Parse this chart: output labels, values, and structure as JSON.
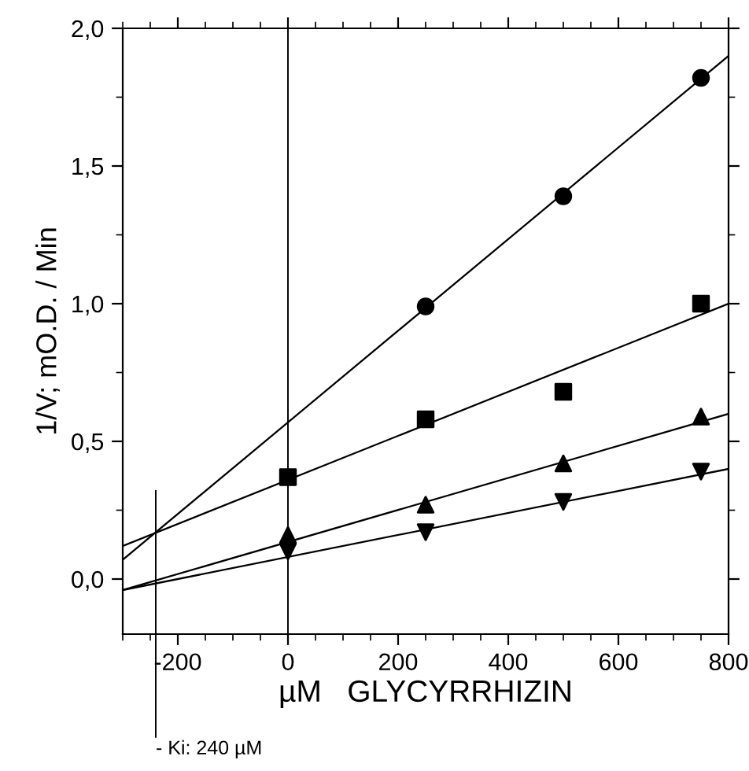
{
  "chart_data": {
    "type": "scatter",
    "xlabel": "µM   GLYCYRRHIZIN",
    "ylabel": "1/V; mO.D. / Min",
    "xlim": [
      -300,
      800
    ],
    "ylim": [
      -0.2,
      2.0
    ],
    "xticks": [
      -200,
      0,
      200,
      400,
      600,
      800
    ],
    "yticks": [
      {
        "value": 0,
        "label": "0,0"
      },
      {
        "value": 0.5,
        "label": "0,5"
      },
      {
        "value": 1,
        "label": "1,0"
      },
      {
        "value": 1.5,
        "label": "1,5"
      },
      {
        "value": 2,
        "label": "2,0"
      }
    ],
    "grid": false,
    "legend": false,
    "series": [
      {
        "marker": "circle",
        "color": "#000000",
        "x": [
          250,
          500,
          750
        ],
        "values": [
          0.99,
          1.39,
          1.82
        ]
      },
      {
        "marker": "square",
        "color": "#000000",
        "x": [
          0,
          250,
          500,
          750
        ],
        "values": [
          0.37,
          0.58,
          0.68,
          1.0
        ]
      },
      {
        "marker": "triangle",
        "color": "#000000",
        "x": [
          0,
          250,
          500,
          750
        ],
        "values": [
          0.16,
          0.27,
          0.42,
          0.59
        ]
      },
      {
        "marker": "triangle_down",
        "color": "#000000",
        "x": [
          0,
          250,
          500,
          750
        ],
        "values": [
          0.1,
          0.17,
          0.28,
          0.39
        ]
      },
      {
        "type": "line",
        "color": "#000000",
        "x": [
          -300,
          800
        ],
        "values": [
          0.07,
          1.9
        ]
      },
      {
        "type": "line",
        "color": "#000000",
        "x": [
          -300,
          800
        ],
        "values": [
          0.12,
          1.0
        ]
      },
      {
        "type": "line",
        "color": "#000000",
        "x": [
          -300,
          800
        ],
        "values": [
          -0.04,
          0.6
        ]
      },
      {
        "type": "line",
        "color": "#000000",
        "x": [
          -300,
          800
        ],
        "values": [
          -0.04,
          0.4
        ]
      }
    ],
    "ref_lines": [
      {
        "axis": "x",
        "value": 0,
        "color": "#000000"
      },
      {
        "axis": "x",
        "value": -240,
        "color": "#000000"
      }
    ],
    "annotations": [
      "- Ki: 240 µM"
    ]
  }
}
